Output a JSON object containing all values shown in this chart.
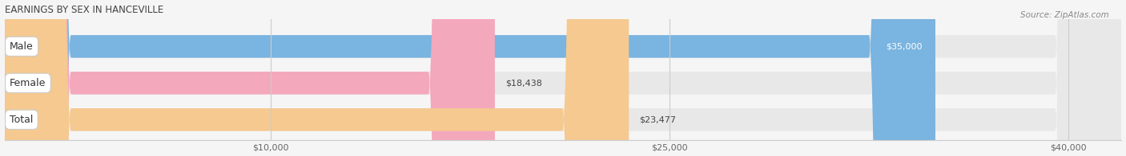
{
  "title": "EARNINGS BY SEX IN HANCEVILLE",
  "source": "Source: ZipAtlas.com",
  "categories": [
    "Male",
    "Female",
    "Total"
  ],
  "values": [
    35000,
    18438,
    23477
  ],
  "bar_colors": [
    "#7ab4e0",
    "#f4a8bc",
    "#f5c990"
  ],
  "bar_bg_color": "#e8e8e8",
  "value_labels": [
    "$35,000",
    "$18,438",
    "$23,477"
  ],
  "x_ticks": [
    10000,
    25000,
    40000
  ],
  "x_tick_labels": [
    "$10,000",
    "$25,000",
    "$40,000"
  ],
  "xmin": 0,
  "xmax": 42000,
  "title_fontsize": 8.5,
  "source_fontsize": 7.5,
  "bar_label_fontsize": 9,
  "value_fontsize": 8,
  "tick_fontsize": 8,
  "background_color": "#f5f5f5",
  "plot_bg_color": "#f5f5f5",
  "grid_color": "#cccccc"
}
